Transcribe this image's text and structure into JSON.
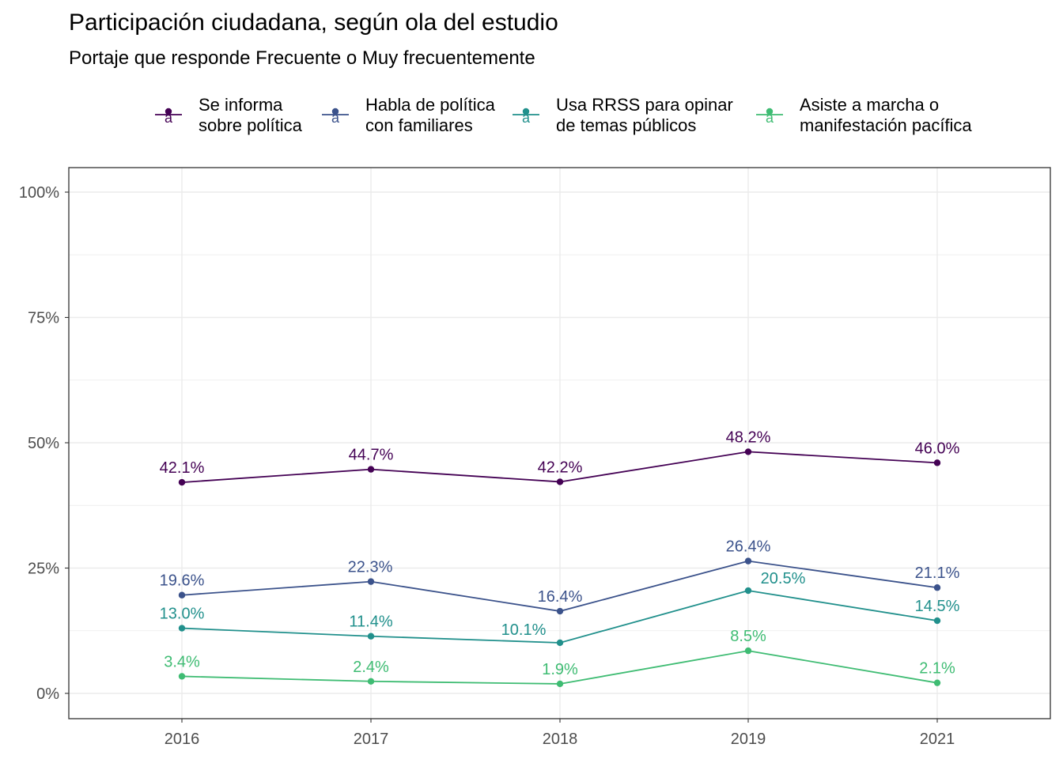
{
  "chart_data": {
    "type": "line",
    "title": "Participación ciudadana, según ola del estudio",
    "subtitle": "Portaje que responde Frecuente o Muy frecuentemente",
    "xlabel": "",
    "ylabel": "",
    "categories": [
      "2016",
      "2017",
      "2018",
      "2019",
      "2021"
    ],
    "ylim": [
      0,
      100
    ],
    "y_ticks": [
      "0%",
      "25%",
      "50%",
      "75%",
      "100%"
    ],
    "y_tick_values": [
      0,
      25,
      50,
      75,
      100
    ],
    "grid": true,
    "legend_position": "top",
    "series": [
      {
        "name": "Se informa sobre política",
        "legend_lines": [
          "Se informa",
          "sobre política"
        ],
        "color": "#440154",
        "values": [
          42.1,
          44.7,
          42.2,
          48.2,
          46.0
        ],
        "labels": [
          "42.1%",
          "44.7%",
          "42.2%",
          "48.2%",
          "46.0%"
        ]
      },
      {
        "name": "Habla de política con familiares",
        "legend_lines": [
          "Habla de política",
          "con familiares"
        ],
        "color": "#3B528B",
        "values": [
          19.6,
          22.3,
          16.4,
          26.4,
          21.1
        ],
        "labels": [
          "19.6%",
          "22.3%",
          "16.4%",
          "26.4%",
          "21.1%"
        ]
      },
      {
        "name": "Usa RRSS para opinar de temas públicos",
        "legend_lines": [
          "Usa RRSS para opinar",
          "de temas públicos"
        ],
        "color": "#21908C",
        "values": [
          13.0,
          11.4,
          10.1,
          20.5,
          14.5
        ],
        "labels": [
          "13.0%",
          "11.4%",
          "10.1%",
          "20.5%",
          "14.5%"
        ]
      },
      {
        "name": "Asiste a marcha o manifestación pacífica",
        "legend_lines": [
          "Asiste a marcha o",
          "manifestación pacífica"
        ],
        "color": "#3FBC73",
        "values": [
          3.4,
          2.4,
          1.9,
          8.5,
          2.1
        ],
        "labels": [
          "3.4%",
          "2.4%",
          "1.9%",
          "8.5%",
          "2.1%"
        ]
      }
    ],
    "legend_key_glyph": "a"
  }
}
